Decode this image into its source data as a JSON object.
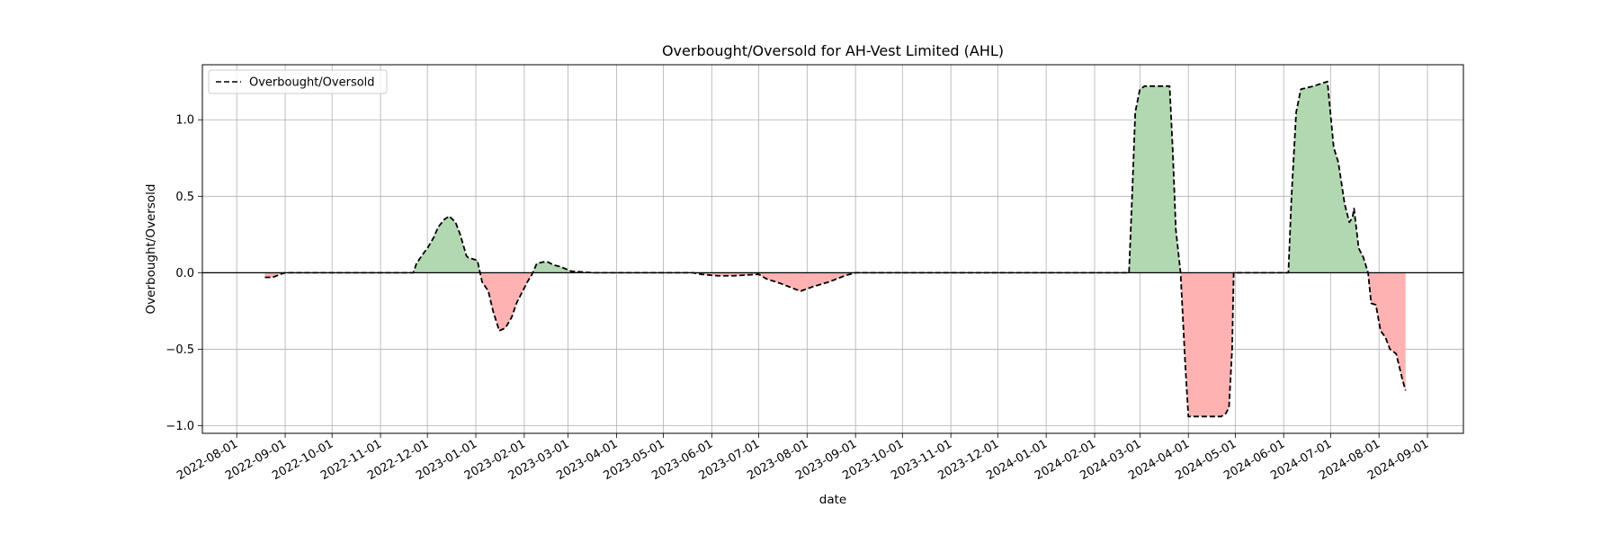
{
  "chart_data": {
    "type": "area",
    "title": "Overbought/Oversold for AH-Vest Limited (AHL)",
    "xlabel": "date",
    "ylabel": "Overbought/Oversold",
    "xlim": [
      "2022-07-10",
      "2024-09-24"
    ],
    "ylim": [
      -1.05,
      1.36
    ],
    "x_ticks": [
      "2022-08-01",
      "2022-09-01",
      "2022-10-01",
      "2022-11-01",
      "2022-12-01",
      "2023-01-01",
      "2023-02-01",
      "2023-03-01",
      "2023-04-01",
      "2023-05-01",
      "2023-06-01",
      "2023-07-01",
      "2023-08-01",
      "2023-09-01",
      "2023-10-01",
      "2023-11-01",
      "2023-12-01",
      "2024-01-01",
      "2024-02-01",
      "2024-03-01",
      "2024-04-01",
      "2024-05-01",
      "2024-06-01",
      "2024-07-01",
      "2024-08-01",
      "2024-09-01"
    ],
    "y_ticks": [
      {
        "value": 1.0,
        "label": "1.0"
      },
      {
        "value": 0.5,
        "label": "0.5"
      },
      {
        "value": 0.0,
        "label": "0.0"
      },
      {
        "value": -0.5,
        "label": "−0.5"
      },
      {
        "value": -1.0,
        "label": "−1.0"
      }
    ],
    "grid": true,
    "legend": {
      "position": "top-left",
      "entries": [
        "Overbought/Oversold"
      ]
    },
    "reference_line": 0,
    "fill_colors": {
      "positive": "#b2d8b2",
      "negative": "#ffb2b2"
    },
    "line_color": "#000000",
    "series": [
      {
        "name": "Overbought/Oversold",
        "style": "dashed",
        "x": [
          "2022-08-19",
          "2022-08-24",
          "2022-08-29",
          "2022-09-01",
          "2022-09-15",
          "2022-10-15",
          "2022-11-15",
          "2022-11-22",
          "2022-11-24",
          "2022-11-28",
          "2022-12-01",
          "2022-12-05",
          "2022-12-08",
          "2022-12-12",
          "2022-12-15",
          "2022-12-19",
          "2022-12-22",
          "2022-12-26",
          "2022-12-27",
          "2023-01-02",
          "2023-01-05",
          "2023-01-09",
          "2023-01-12",
          "2023-01-16",
          "2023-01-20",
          "2023-01-24",
          "2023-01-27",
          "2023-01-31",
          "2023-02-03",
          "2023-02-06",
          "2023-02-09",
          "2023-02-13",
          "2023-02-16",
          "2023-02-20",
          "2023-02-24",
          "2023-03-03",
          "2023-03-10",
          "2023-03-17",
          "2023-04-01",
          "2023-05-01",
          "2023-05-20",
          "2023-05-25",
          "2023-06-05",
          "2023-06-15",
          "2023-07-01",
          "2023-07-06",
          "2023-07-15",
          "2023-07-25",
          "2023-07-28",
          "2023-08-05",
          "2023-08-15",
          "2023-08-25",
          "2023-09-01",
          "2023-10-01",
          "2023-11-01",
          "2023-12-01",
          "2024-01-01",
          "2024-02-01",
          "2024-02-23",
          "2024-02-25",
          "2024-02-27",
          "2024-03-01",
          "2024-03-04",
          "2024-03-20",
          "2024-03-22",
          "2024-03-24",
          "2024-03-27",
          "2024-03-30",
          "2024-04-01",
          "2024-04-15",
          "2024-04-22",
          "2024-04-25",
          "2024-04-27",
          "2024-04-29",
          "2024-04-30",
          "2024-05-15",
          "2024-06-01",
          "2024-06-04",
          "2024-06-06",
          "2024-06-09",
          "2024-06-12",
          "2024-06-20",
          "2024-06-29",
          "2024-07-03",
          "2024-07-06",
          "2024-07-10",
          "2024-07-13",
          "2024-07-15",
          "2024-07-16",
          "2024-07-19",
          "2024-07-22",
          "2024-07-25",
          "2024-07-27",
          "2024-07-30",
          "2024-08-02",
          "2024-08-05",
          "2024-08-08",
          "2024-08-12",
          "2024-08-16",
          "2024-08-18"
        ],
        "values": [
          -0.03,
          -0.03,
          -0.01,
          0.0,
          0.0,
          0.0,
          0.0,
          0.0,
          0.06,
          0.12,
          0.16,
          0.23,
          0.3,
          0.35,
          0.37,
          0.33,
          0.25,
          0.11,
          0.1,
          0.08,
          -0.06,
          -0.12,
          -0.25,
          -0.38,
          -0.36,
          -0.29,
          -0.2,
          -0.12,
          -0.06,
          -0.01,
          0.06,
          0.07,
          0.07,
          0.05,
          0.04,
          0.01,
          0.005,
          0.0,
          0.0,
          0.0,
          0.0,
          -0.01,
          -0.02,
          -0.02,
          -0.01,
          -0.04,
          -0.07,
          -0.11,
          -0.12,
          -0.09,
          -0.06,
          -0.02,
          0.0,
          0.0,
          0.0,
          0.0,
          0.0,
          0.0,
          0.0,
          0.5,
          1.05,
          1.2,
          1.22,
          1.22,
          0.8,
          0.28,
          0.0,
          -0.6,
          -0.94,
          -0.94,
          -0.94,
          -0.92,
          -0.88,
          -0.5,
          0.0,
          0.0,
          0.0,
          0.0,
          0.5,
          1.05,
          1.2,
          1.22,
          1.25,
          0.82,
          0.72,
          0.45,
          0.33,
          0.36,
          0.42,
          0.16,
          0.1,
          0.0,
          -0.2,
          -0.21,
          -0.38,
          -0.42,
          -0.5,
          -0.53,
          -0.7,
          -0.77
        ]
      }
    ]
  }
}
